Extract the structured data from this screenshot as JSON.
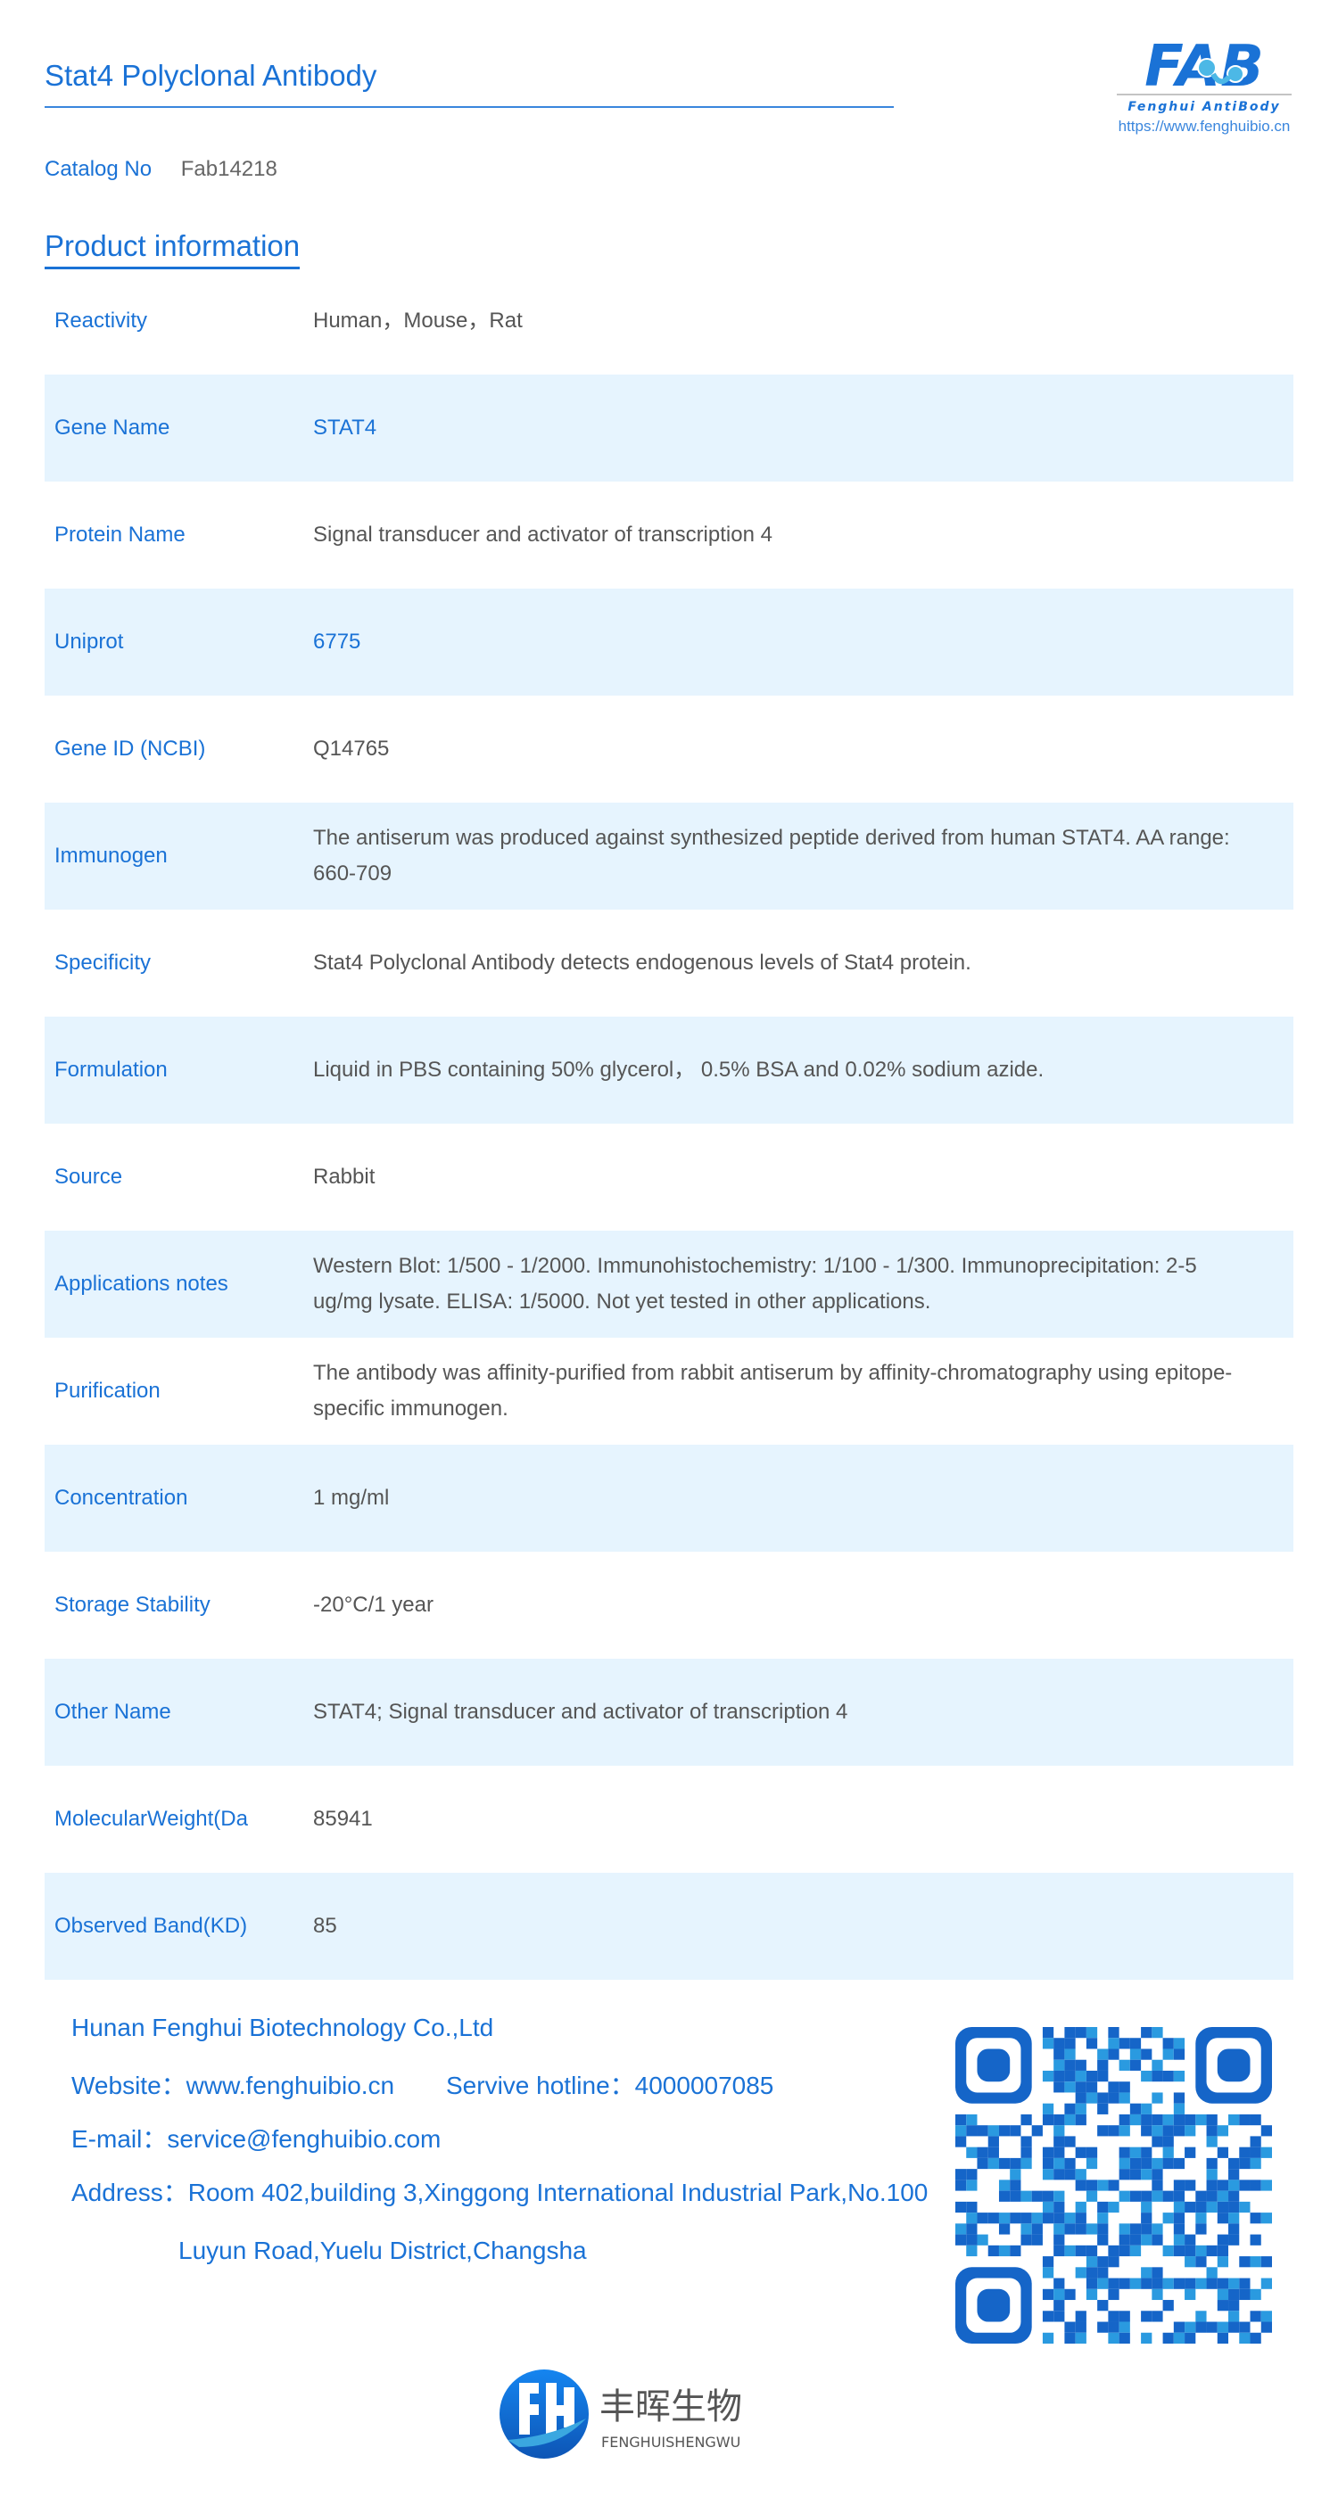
{
  "header": {
    "title": "Stat4 Polyclonal Antibody",
    "logo_text": "FAB",
    "logo_tagline": "Fenghui AntiBody",
    "logo_url": "https://www.fenghuibio.cn"
  },
  "catalog": {
    "label": "Catalog No",
    "value": "Fab14218"
  },
  "section_title": "Product information",
  "rows": [
    {
      "label": "Reactivity",
      "value": "Human，Mouse，Rat"
    },
    {
      "label": "Gene Name",
      "value": "STAT4",
      "highlight": true
    },
    {
      "label": "Protein Name",
      "value": "Signal transducer and activator of transcription 4"
    },
    {
      "label": "Uniprot",
      "value": "6775",
      "highlight": true
    },
    {
      "label": "Gene ID (NCBI)",
      "value": "Q14765"
    },
    {
      "label": "Immunogen",
      "value": "The antiserum was produced against synthesized peptide derived from human STAT4. AA range: 660-709"
    },
    {
      "label": "Specificity",
      "value": "Stat4 Polyclonal Antibody detects endogenous levels of Stat4 protein."
    },
    {
      "label": "Formulation",
      "value": "Liquid in PBS containing 50% glycerol， 0.5% BSA and 0.02% sodium azide."
    },
    {
      "label": "Source",
      "value": "Rabbit"
    },
    {
      "label": "Applications notes",
      "value": "Western Blot: 1/500 - 1/2000. Immunohistochemistry: 1/100 - 1/300. Immunoprecipitation: 2-5 ug/mg lysate. ELISA: 1/5000. Not yet tested in other applications."
    },
    {
      "label": "Purification",
      "value": "The antibody was affinity-purified from rabbit antiserum by affinity-chromatography using epitope-specific immunogen."
    },
    {
      "label": "Concentration",
      "value": "1 mg/ml"
    },
    {
      "label": "Storage Stability",
      "value": "-20°C/1 year"
    },
    {
      "label": "Other Name",
      "value": "STAT4; Signal transducer and activator of transcription 4"
    },
    {
      "label": "MolecularWeight(Da",
      "value": "85941"
    },
    {
      "label": "Observed Band(KD)",
      "value": "85"
    }
  ],
  "footer": {
    "company": "Hunan Fenghui Biotechnology Co.,Ltd",
    "website": "Website：www.fenghuibio.cn",
    "hotline": "Servive hotline：4000007085",
    "email": "E-mail：service@fenghuibio.com",
    "address_1": "Address：Room 402,building 3,Xinggong International Industrial Park,No.100",
    "address_2": "Luyun Road,Yuelu District,Changsha",
    "brand_cn": "丰晖生物",
    "brand_pinyin": "FENGHUISHENGWU"
  },
  "colors": {
    "accent": "#1a72d6",
    "row_alt": "#e6f4fe",
    "text": "#555555"
  }
}
